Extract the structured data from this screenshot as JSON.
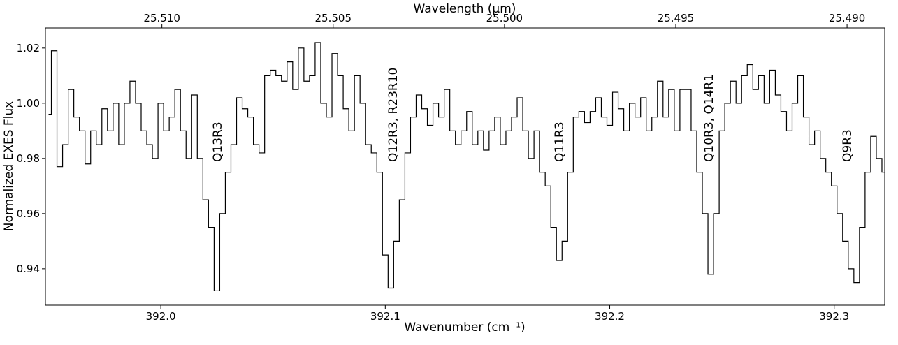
{
  "chart_data": {
    "type": "line",
    "drawstyle": "steps-mid",
    "xlabel": "Wavenumber (cm⁻¹)",
    "x2label": "Wavelength (μm)",
    "ylabel": "Normalized EXES Flux",
    "xlim": [
      391.9486,
      392.3225
    ],
    "ylim": [
      0.9268,
      1.0273
    ],
    "x2lim": [
      25.5134,
      25.4889
    ],
    "xticks": [
      {
        "value": 392.0,
        "label": "392.0"
      },
      392.1,
      392.2,
      392.3
    ],
    "yticks": [
      0.94,
      0.96,
      0.98,
      {
        "value": 1.0,
        "label": "1.00"
      },
      1.02
    ],
    "x2ticks": [
      {
        "value": 25.51,
        "label": "25.510"
      },
      25.505,
      {
        "value": 25.5,
        "label": "25.500"
      },
      25.495,
      {
        "value": 25.49,
        "label": "25.490"
      }
    ],
    "annotations": [
      "Q13R3",
      "Q12R3, R23R10",
      "Q11R3",
      "Q10R3, Q14R1",
      "Q9R3"
    ],
    "series": [
      {
        "color": "#000000",
        "x": [
          391.95,
          391.9525,
          391.955,
          391.9575,
          391.96,
          391.9625,
          391.965,
          391.9675,
          391.97,
          391.9725,
          391.975,
          391.9775,
          391.98,
          391.9825,
          391.985,
          391.9875,
          391.99,
          391.9925,
          391.995,
          391.9975,
          392.0,
          392.0025,
          392.005,
          392.0075,
          392.01,
          392.0125,
          392.015,
          392.0175,
          392.02,
          392.0225,
          392.025,
          392.0275,
          392.03,
          392.0325,
          392.035,
          392.0375,
          392.04,
          392.0425,
          392.045,
          392.0475,
          392.05,
          392.0525,
          392.055,
          392.0575,
          392.06,
          392.0625,
          392.065,
          392.0675,
          392.07,
          392.0725,
          392.075,
          392.0775,
          392.08,
          392.0825,
          392.085,
          392.0875,
          392.09,
          392.0925,
          392.095,
          392.0975,
          392.1,
          392.1025,
          392.105,
          392.1075,
          392.11,
          392.1125,
          392.115,
          392.1175,
          392.12,
          392.1225,
          392.125,
          392.1275,
          392.13,
          392.1325,
          392.135,
          392.1375,
          392.14,
          392.1425,
          392.145,
          392.1475,
          392.15,
          392.1525,
          392.155,
          392.1575,
          392.16,
          392.1625,
          392.165,
          392.1675,
          392.17,
          392.1725,
          392.175,
          392.1775,
          392.18,
          392.1825,
          392.185,
          392.1875,
          392.19,
          392.1925,
          392.195,
          392.1975,
          392.2,
          392.2025,
          392.205,
          392.2075,
          392.21,
          392.2125,
          392.215,
          392.2175,
          392.22,
          392.2225,
          392.225,
          392.2275,
          392.23,
          392.2325,
          392.235,
          392.2375,
          392.24,
          392.2425,
          392.245,
          392.2475,
          392.25,
          392.2525,
          392.255,
          392.2575,
          392.26,
          392.2625,
          392.265,
          392.2675,
          392.27,
          392.2725,
          392.275,
          392.2775,
          392.28,
          392.2825,
          392.285,
          392.2875,
          392.29,
          392.2925,
          392.295,
          392.2975,
          392.3,
          392.3025,
          392.305,
          392.3075,
          392.31,
          392.3125,
          392.315,
          392.3175,
          392.32,
          392.3225
        ],
        "values": [
          0.996,
          1.019,
          0.977,
          0.985,
          1.005,
          0.995,
          0.99,
          0.978,
          0.99,
          0.985,
          0.998,
          0.99,
          1.0,
          0.985,
          1.0,
          1.008,
          1.0,
          0.99,
          0.985,
          0.98,
          1.0,
          0.99,
          0.995,
          1.005,
          0.99,
          0.98,
          1.003,
          0.98,
          0.965,
          0.955,
          0.932,
          0.96,
          0.975,
          0.985,
          1.002,
          0.998,
          0.995,
          0.985,
          0.982,
          1.01,
          1.012,
          1.01,
          1.008,
          1.015,
          1.005,
          1.02,
          1.008,
          1.01,
          1.022,
          1.0,
          0.995,
          1.018,
          1.01,
          0.998,
          0.99,
          1.01,
          1.0,
          0.985,
          0.982,
          0.975,
          0.945,
          0.933,
          0.95,
          0.965,
          0.982,
          0.995,
          1.003,
          0.998,
          0.992,
          1.0,
          0.995,
          1.005,
          0.99,
          0.985,
          0.99,
          0.997,
          0.985,
          0.99,
          0.983,
          0.99,
          0.995,
          0.985,
          0.99,
          0.995,
          1.002,
          0.99,
          0.98,
          0.99,
          0.975,
          0.97,
          0.955,
          0.943,
          0.95,
          0.975,
          0.995,
          0.997,
          0.993,
          0.997,
          1.002,
          0.995,
          0.992,
          1.004,
          0.998,
          0.99,
          1.0,
          0.995,
          1.002,
          0.99,
          0.995,
          1.008,
          0.995,
          1.005,
          0.99,
          1.005,
          1.005,
          0.99,
          0.975,
          0.96,
          0.938,
          0.96,
          0.99,
          1.0,
          1.008,
          1.0,
          1.01,
          1.014,
          1.005,
          1.01,
          1.0,
          1.012,
          1.003,
          0.997,
          0.99,
          1.0,
          1.01,
          0.995,
          0.985,
          0.99,
          0.98,
          0.975,
          0.97,
          0.96,
          0.95,
          0.94,
          0.935,
          0.955,
          0.975,
          0.988,
          0.98,
          0.975
        ]
      }
    ]
  }
}
